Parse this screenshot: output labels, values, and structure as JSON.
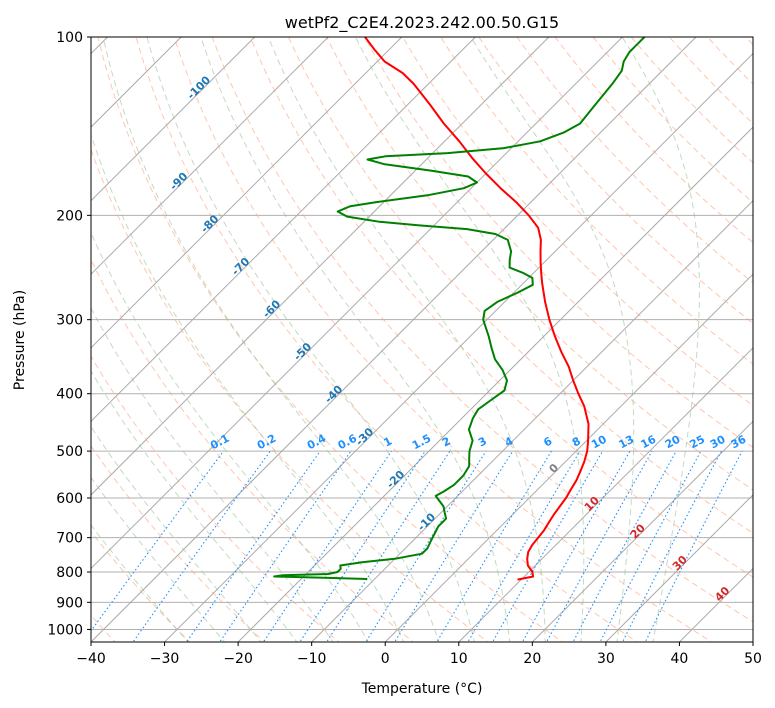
{
  "chart_data": {
    "type": "line",
    "title": "wetPf2_C2E4.2023.242.00.50.G15",
    "xlabel": "Temperature (°C)",
    "ylabel": "Pressure (hPa)",
    "xlim": [
      -40,
      50
    ],
    "ylim": [
      1050,
      100
    ],
    "y_scale": "log",
    "grid": true,
    "x_ticks": [
      "−40",
      "−30",
      "−20",
      "−10",
      "0",
      "10",
      "20",
      "30",
      "40",
      "50"
    ],
    "y_ticks": [
      "1000",
      "900",
      "800",
      "700",
      "600",
      "500",
      "400",
      "300",
      "200",
      "100"
    ],
    "series": [
      {
        "color": "#ff0000",
        "points": [
          [
            824,
            9.5
          ],
          [
            814,
            11.2
          ],
          [
            800,
            10.5
          ],
          [
            780,
            9.0
          ],
          [
            760,
            8.0
          ],
          [
            740,
            7.2
          ],
          [
            720,
            6.8
          ],
          [
            700,
            6.6
          ],
          [
            680,
            6.4
          ],
          [
            660,
            6.0
          ],
          [
            640,
            5.6
          ],
          [
            620,
            5.3
          ],
          [
            600,
            5.0
          ],
          [
            580,
            4.5
          ],
          [
            560,
            4.0
          ],
          [
            540,
            3.3
          ],
          [
            520,
            2.5
          ],
          [
            500,
            1.5
          ],
          [
            480,
            0.2
          ],
          [
            450,
            -2.0
          ],
          [
            420,
            -5.0
          ],
          [
            400,
            -7.5
          ],
          [
            380,
            -10.0
          ],
          [
            360,
            -12.5
          ],
          [
            340,
            -15.5
          ],
          [
            320,
            -18.5
          ],
          [
            300,
            -21.5
          ],
          [
            280,
            -24.5
          ],
          [
            260,
            -27.5
          ],
          [
            250,
            -29.0
          ],
          [
            240,
            -30.5
          ],
          [
            230,
            -32.0
          ],
          [
            220,
            -33.5
          ],
          [
            210,
            -35.5
          ],
          [
            200,
            -38.5
          ],
          [
            190,
            -42.0
          ],
          [
            180,
            -46.0
          ],
          [
            170,
            -50.0
          ],
          [
            160,
            -54.0
          ],
          [
            150,
            -58.0
          ],
          [
            140,
            -62.5
          ],
          [
            130,
            -67.0
          ],
          [
            120,
            -72.0
          ],
          [
            115,
            -75.0
          ],
          [
            110,
            -79.0
          ],
          [
            105,
            -82.0
          ],
          [
            100,
            -85.0
          ]
        ]
      },
      {
        "color": "#008000",
        "points": [
          [
            822,
            -11.0
          ],
          [
            818,
            -17.0
          ],
          [
            814,
            -24.0
          ],
          [
            810,
            -23.0
          ],
          [
            806,
            -17.0
          ],
          [
            800,
            -16.0
          ],
          [
            790,
            -16.0
          ],
          [
            780,
            -16.5
          ],
          [
            770,
            -14.0
          ],
          [
            760,
            -10.0
          ],
          [
            745,
            -7.0
          ],
          [
            730,
            -7.0
          ],
          [
            710,
            -7.5
          ],
          [
            690,
            -8.0
          ],
          [
            670,
            -8.5
          ],
          [
            650,
            -8.5
          ],
          [
            635,
            -9.5
          ],
          [
            620,
            -10.5
          ],
          [
            605,
            -12.0
          ],
          [
            595,
            -13.0
          ],
          [
            585,
            -12.5
          ],
          [
            570,
            -12.0
          ],
          [
            550,
            -12.0
          ],
          [
            530,
            -12.5
          ],
          [
            515,
            -13.5
          ],
          [
            500,
            -14.5
          ],
          [
            480,
            -15.5
          ],
          [
            460,
            -17.5
          ],
          [
            440,
            -18.5
          ],
          [
            425,
            -19.0
          ],
          [
            410,
            -18.5
          ],
          [
            395,
            -18.0
          ],
          [
            380,
            -19.0
          ],
          [
            365,
            -21.0
          ],
          [
            350,
            -23.5
          ],
          [
            335,
            -25.5
          ],
          [
            320,
            -27.5
          ],
          [
            300,
            -30.5
          ],
          [
            290,
            -31.5
          ],
          [
            280,
            -31.0
          ],
          [
            270,
            -29.5
          ],
          [
            262,
            -28.5
          ],
          [
            255,
            -29.5
          ],
          [
            250,
            -31.5
          ],
          [
            245,
            -34.0
          ],
          [
            238,
            -35.0
          ],
          [
            230,
            -36.0
          ],
          [
            225,
            -37.0
          ],
          [
            220,
            -38.0
          ],
          [
            215,
            -40.5
          ],
          [
            211,
            -45.0
          ],
          [
            208,
            -52.0
          ],
          [
            205,
            -58.0
          ],
          [
            201,
            -63.0
          ],
          [
            197,
            -65.0
          ],
          [
            193,
            -64.0
          ],
          [
            190,
            -61.0
          ],
          [
            185,
            -55.0
          ],
          [
            180,
            -51.0
          ],
          [
            176,
            -50.0
          ],
          [
            172,
            -52.0
          ],
          [
            168,
            -58.0
          ],
          [
            164,
            -65.0
          ],
          [
            161,
            -68.0
          ],
          [
            159,
            -66.0
          ],
          [
            157,
            -58.0
          ],
          [
            154,
            -51.0
          ],
          [
            150,
            -47.0
          ],
          [
            145,
            -45.0
          ],
          [
            140,
            -44.0
          ],
          [
            130,
            -44.5
          ],
          [
            120,
            -45.0
          ],
          [
            114,
            -45.5
          ],
          [
            110,
            -46.5
          ],
          [
            106,
            -47.0
          ],
          [
            103,
            -47.0
          ],
          [
            100,
            -47.0
          ]
        ]
      }
    ],
    "dry_adiabats": {
      "color": "#ffa07a",
      "theta_c": [
        -60,
        -50,
        -40,
        -30,
        -20,
        -10,
        0,
        10,
        20,
        30,
        40,
        50,
        60,
        70,
        80,
        90,
        100,
        110,
        120,
        130,
        140,
        150,
        160,
        170,
        180,
        190,
        200,
        210,
        220,
        230
      ]
    },
    "moist_adiabats": {
      "color": "#8fbc8f",
      "theta_w_c": [
        -30,
        -25,
        -20,
        -15,
        -10,
        -5,
        0,
        5,
        10,
        15,
        20,
        25,
        30,
        35
      ]
    },
    "mixing_ratio": {
      "color": "#1e90ff",
      "top_hpa": 500,
      "values": [
        0.1,
        0.2,
        0.4,
        0.6,
        1,
        1.5,
        2,
        3,
        4,
        6,
        8,
        10,
        13,
        16,
        20,
        25,
        30,
        36
      ],
      "labels": [
        "0.1",
        "0.2",
        "0.4",
        "0.6",
        "1",
        "1.5",
        "2",
        "3",
        "4",
        "6",
        "8",
        "10",
        "13",
        "16",
        "20",
        "25",
        "30",
        "36"
      ]
    },
    "isotherm_labels": {
      "blue": {
        "color": "#1f77b4",
        "pressure_start": 150,
        "temps": [
          -100,
          -90,
          -80,
          -70,
          -60,
          -50,
          -40,
          -30,
          -20,
          -10
        ],
        "labels": [
          "-100",
          "-90",
          "-80",
          "-70",
          "-60",
          "-50",
          "-40",
          "-30",
          "-20",
          "-10"
        ]
      },
      "gray": {
        "color": "#808080",
        "temps": [
          0
        ],
        "labels": [
          "0"
        ]
      },
      "red": {
        "color": "#d62728",
        "temps": [
          10,
          20,
          30,
          40
        ],
        "labels": [
          "10",
          "20",
          "30",
          "40"
        ]
      }
    }
  }
}
